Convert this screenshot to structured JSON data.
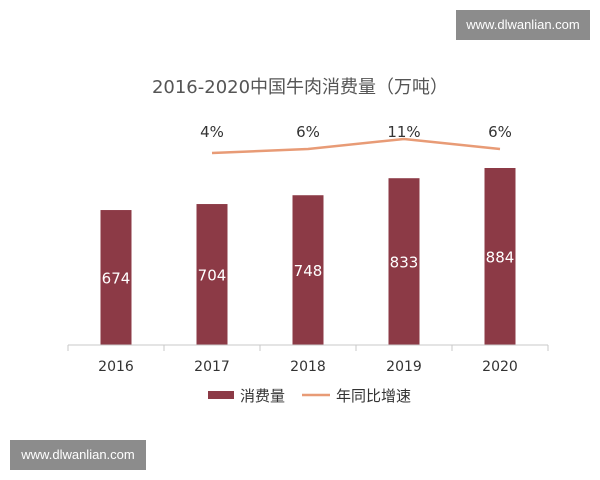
{
  "watermarks": {
    "top": "www.dlwanlian.com",
    "bottom": "www.dlwanlian.com"
  },
  "chart_data": {
    "type": "bar",
    "title": "2016-2020中国牛肉消费量（万吨）",
    "categories": [
      "2016",
      "2017",
      "2018",
      "2019",
      "2020"
    ],
    "series": [
      {
        "name": "消费量",
        "values": [
          674,
          704,
          748,
          833,
          884
        ],
        "color": "#8c3a46"
      }
    ],
    "line_series": {
      "name": "年同比增速",
      "categories": [
        "2017",
        "2018",
        "2019",
        "2020"
      ],
      "values": [
        4,
        6,
        11,
        6
      ],
      "labels": [
        "4%",
        "6%",
        "11%",
        "6%"
      ],
      "color": "#e89b76"
    },
    "ylim": [
      0,
      1000
    ],
    "grid": false,
    "legend": "bottom",
    "axis_color": "#c8c8c8"
  }
}
